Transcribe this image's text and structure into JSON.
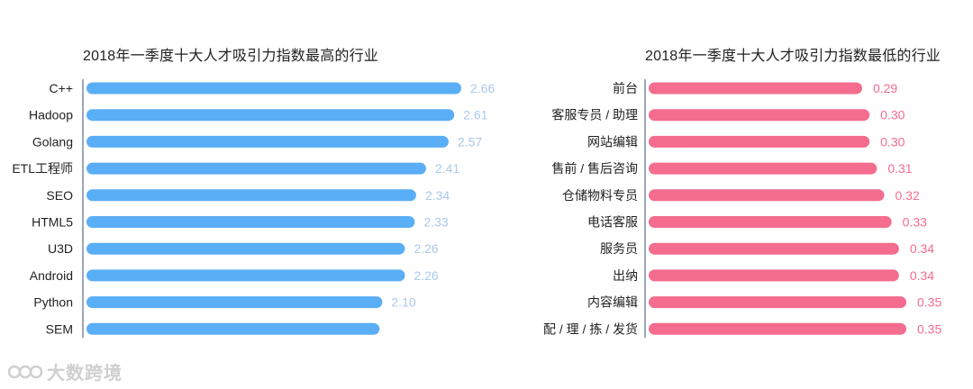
{
  "chart_data": [
    {
      "type": "bar",
      "orientation": "horizontal",
      "title": "2018年一季度十大人才吸引力指数最高的行业",
      "categories": [
        "C++",
        "Hadoop",
        "Golang",
        "ETL工程师",
        "SEO",
        "HTML5",
        "U3D",
        "Android",
        "Python",
        "SEM"
      ],
      "values": [
        2.66,
        2.61,
        2.57,
        2.41,
        2.34,
        2.33,
        2.26,
        2.26,
        2.1,
        2.08
      ],
      "value_labels": [
        "2.66",
        "2.61",
        "2.57",
        "2.41",
        "2.34",
        "2.33",
        "2.26",
        "2.26",
        "2.10",
        ""
      ],
      "xlim": [
        0,
        2.66
      ],
      "bar_color": "#5aaef5",
      "label_color": "#a9c9ea",
      "legend": "none"
    },
    {
      "type": "bar",
      "orientation": "horizontal",
      "title": "2018年一季度十大人才吸引力指数最低的行业",
      "categories": [
        "前台",
        "客服专员 / 助理",
        "网站编辑",
        "售前 / 售后咨询",
        "仓储物料专员",
        "电话客服",
        "服务员",
        "出纳",
        "内容编辑",
        "配 / 理 / 拣 / 发货"
      ],
      "values": [
        0.29,
        0.3,
        0.3,
        0.31,
        0.32,
        0.33,
        0.34,
        0.34,
        0.35,
        0.35
      ],
      "value_labels": [
        "0.29",
        "0.30",
        "0.30",
        "0.31",
        "0.32",
        "0.33",
        "0.34",
        "0.34",
        "0.35",
        "0.35"
      ],
      "xlim": [
        0,
        0.35
      ],
      "bar_color": "#f46c8e",
      "label_color": "#f46c8e",
      "legend": "none"
    }
  ],
  "watermark": {
    "text": "大数跨境"
  }
}
